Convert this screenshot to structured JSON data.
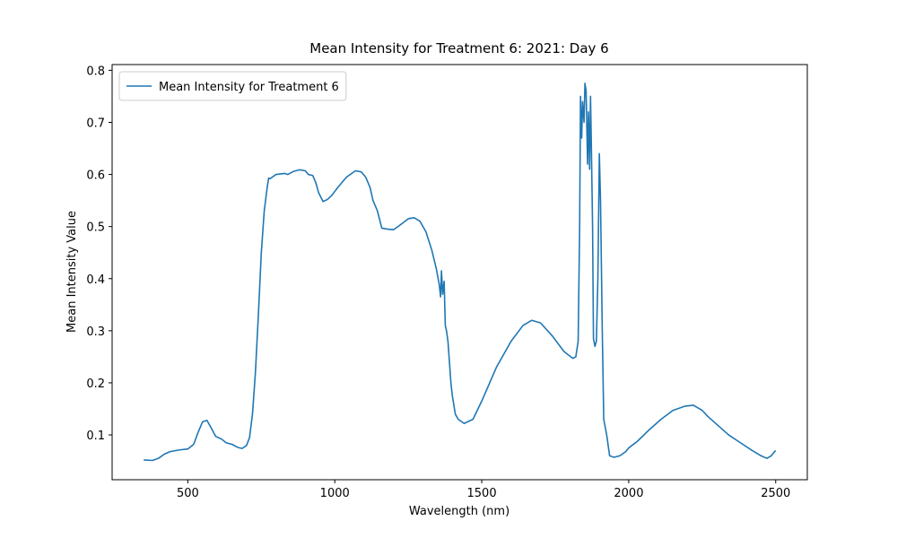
{
  "chart_data": {
    "type": "line",
    "title": "Mean Intensity for Treatment 6: 2021: Day 6",
    "x_label": "Wavelength (nm)",
    "y_label": "Mean Intensity Value",
    "xlim": [
      242.5,
      2607.5
    ],
    "ylim": [
      0.014,
      0.811
    ],
    "xticks": [
      500,
      1000,
      1500,
      2000,
      2500
    ],
    "yticks": [
      0.1,
      0.2,
      0.3,
      0.4,
      0.5,
      0.6,
      0.7,
      0.8
    ],
    "legend": "upper left",
    "grid": false,
    "x": [
      350,
      380,
      400,
      420,
      440,
      470,
      500,
      520,
      535,
      550,
      565,
      580,
      595,
      615,
      630,
      650,
      670,
      685,
      700,
      710,
      720,
      730,
      740,
      750,
      760,
      770,
      775,
      780,
      800,
      830,
      840,
      860,
      880,
      900,
      910,
      925,
      935,
      945,
      960,
      975,
      990,
      1010,
      1040,
      1070,
      1090,
      1105,
      1120,
      1130,
      1145,
      1160,
      1180,
      1200,
      1220,
      1250,
      1270,
      1290,
      1310,
      1330,
      1345,
      1355,
      1360,
      1363,
      1367,
      1372,
      1376,
      1380,
      1385,
      1390,
      1395,
      1400,
      1410,
      1420,
      1440,
      1470,
      1500,
      1550,
      1600,
      1640,
      1670,
      1700,
      1740,
      1780,
      1810,
      1820,
      1828,
      1833,
      1836,
      1840,
      1843,
      1848,
      1851,
      1855,
      1860,
      1863,
      1867,
      1870,
      1873,
      1877,
      1880,
      1885,
      1890,
      1895,
      1900,
      1904,
      1910,
      1915,
      1925,
      1935,
      1950,
      1970,
      1990,
      2000,
      2030,
      2070,
      2110,
      2150,
      2190,
      2220,
      2250,
      2270,
      2300,
      2340,
      2380,
      2420,
      2450,
      2470,
      2485,
      2495,
      2500
    ],
    "series": [
      {
        "name": "Mean Intensity for Treatment 6",
        "color": "#1f77b4",
        "values": [
          0.052,
          0.051,
          0.055,
          0.063,
          0.068,
          0.071,
          0.073,
          0.082,
          0.105,
          0.125,
          0.128,
          0.113,
          0.097,
          0.092,
          0.085,
          0.082,
          0.076,
          0.074,
          0.08,
          0.095,
          0.14,
          0.22,
          0.33,
          0.45,
          0.53,
          0.575,
          0.593,
          0.592,
          0.6,
          0.602,
          0.6,
          0.606,
          0.609,
          0.607,
          0.6,
          0.598,
          0.585,
          0.565,
          0.548,
          0.552,
          0.56,
          0.575,
          0.595,
          0.607,
          0.605,
          0.595,
          0.575,
          0.55,
          0.53,
          0.497,
          0.495,
          0.494,
          0.502,
          0.515,
          0.517,
          0.51,
          0.49,
          0.455,
          0.42,
          0.39,
          0.365,
          0.415,
          0.37,
          0.395,
          0.31,
          0.3,
          0.28,
          0.24,
          0.2,
          0.175,
          0.14,
          0.13,
          0.122,
          0.13,
          0.165,
          0.23,
          0.28,
          0.31,
          0.32,
          0.315,
          0.29,
          0.26,
          0.247,
          0.25,
          0.28,
          0.5,
          0.75,
          0.67,
          0.74,
          0.7,
          0.775,
          0.76,
          0.62,
          0.72,
          0.61,
          0.75,
          0.65,
          0.5,
          0.285,
          0.27,
          0.28,
          0.4,
          0.64,
          0.55,
          0.3,
          0.13,
          0.1,
          0.06,
          0.057,
          0.06,
          0.068,
          0.075,
          0.088,
          0.11,
          0.13,
          0.147,
          0.155,
          0.157,
          0.147,
          0.135,
          0.12,
          0.1,
          0.085,
          0.07,
          0.06,
          0.055,
          0.06,
          0.067,
          0.07
        ]
      }
    ]
  }
}
